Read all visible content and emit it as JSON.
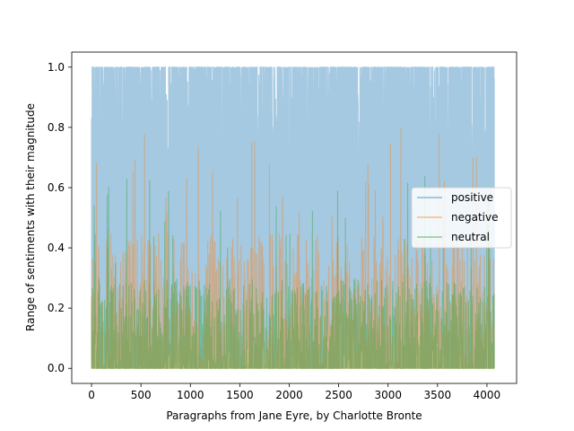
{
  "chart_data": {
    "type": "line",
    "title": "",
    "xlabel": "Paragraphs from Jane Eyre, by Charlotte Bronte",
    "ylabel": "Range of sentiments with their magnitude",
    "xlim": [
      -200,
      4300
    ],
    "ylim": [
      -0.05,
      1.05
    ],
    "x_ticks": [
      0,
      500,
      1000,
      1500,
      2000,
      2500,
      3000,
      3500,
      4000
    ],
    "x_tick_labels": [
      "0",
      "500",
      "1000",
      "1500",
      "2000",
      "2500",
      "3000",
      "3500",
      "4000"
    ],
    "y_ticks": [
      0.0,
      0.2,
      0.4,
      0.6,
      0.8,
      1.0
    ],
    "y_tick_labels": [
      "0.0",
      "0.2",
      "0.4",
      "0.6",
      "0.8",
      "1.0"
    ],
    "n_points": 4077,
    "grid": false,
    "legend_position": "center-right",
    "series": [
      {
        "name": "positive",
        "color": "#1f77b4",
        "alpha": 0.4,
        "approx_typical_range": [
          0.0,
          1.0
        ],
        "approx_typical_high_band": [
          0.55,
          1.0
        ]
      },
      {
        "name": "negative",
        "color": "#ff7f0e",
        "alpha": 0.4,
        "approx_typical_range": [
          0.0,
          0.45
        ],
        "approx_peak": 0.82
      },
      {
        "name": "neutral",
        "color": "#2ca02c",
        "alpha": 0.4,
        "approx_typical_range": [
          0.0,
          0.3
        ],
        "approx_peak": 0.65
      }
    ]
  }
}
